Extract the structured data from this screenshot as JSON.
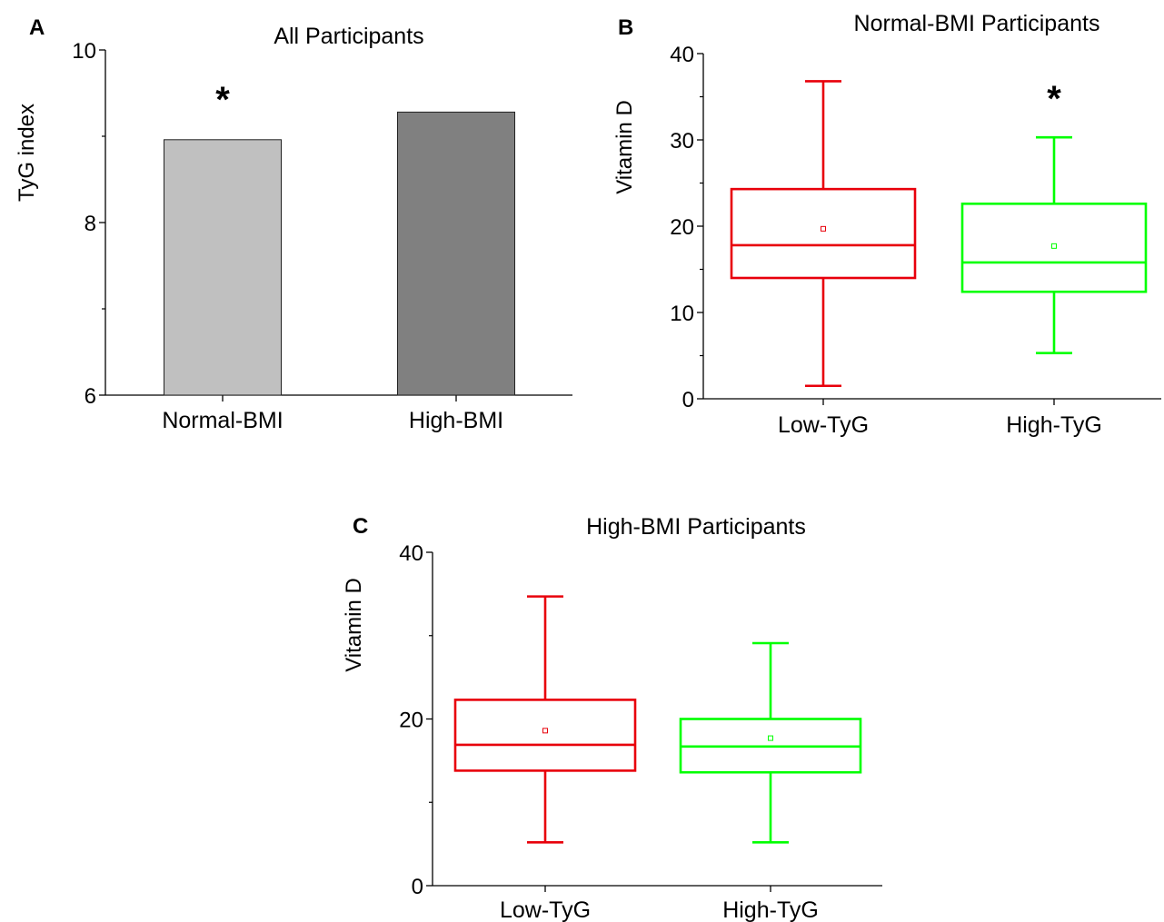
{
  "chart_data": [
    {
      "panel": "A",
      "type": "bar",
      "title": "All Participants",
      "xlabel": "",
      "ylabel": "TyG index",
      "ylim": [
        6,
        10
      ],
      "yticks": [
        "6",
        "8",
        "10"
      ],
      "categories": [
        "Normal-BMI",
        "High-BMI"
      ],
      "values": [
        8.96,
        9.28
      ],
      "colors": [
        "#c0c0c0",
        "#808080"
      ],
      "annotations": [
        {
          "category": "Normal-BMI",
          "text": "*"
        }
      ]
    },
    {
      "panel": "B",
      "type": "box",
      "title": "Normal-BMI Participants",
      "xlabel": "",
      "ylabel": "Vitamin D",
      "ylim": [
        0,
        40
      ],
      "yticks": [
        "0",
        "10",
        "20",
        "30",
        "40"
      ],
      "categories": [
        "Low-TyG",
        "High-TyG"
      ],
      "boxes": [
        {
          "min": 1.5,
          "q1": 14.0,
          "median": 17.8,
          "q3": 24.3,
          "max": 36.8,
          "mean": 19.7,
          "color": "#e8000b"
        },
        {
          "min": 5.3,
          "q1": 12.4,
          "median": 15.8,
          "q3": 22.6,
          "max": 30.3,
          "mean": 17.7,
          "color": "#00ff00"
        }
      ],
      "annotations": [
        {
          "category": "High-TyG",
          "text": "*"
        }
      ]
    },
    {
      "panel": "C",
      "type": "box",
      "title": "High-BMI Participants",
      "xlabel": "",
      "ylabel": "Vitamin D",
      "ylim": [
        0,
        40
      ],
      "yticks": [
        "0",
        "20",
        "40"
      ],
      "categories": [
        "Low-TyG",
        "High-TyG"
      ],
      "boxes": [
        {
          "min": 5.2,
          "q1": 13.8,
          "median": 16.9,
          "q3": 22.3,
          "max": 34.7,
          "mean": 18.6,
          "color": "#e8000b"
        },
        {
          "min": 5.2,
          "q1": 13.6,
          "median": 16.7,
          "q3": 20.0,
          "max": 29.1,
          "mean": 17.7,
          "color": "#00ff00"
        }
      ],
      "annotations": []
    }
  ]
}
